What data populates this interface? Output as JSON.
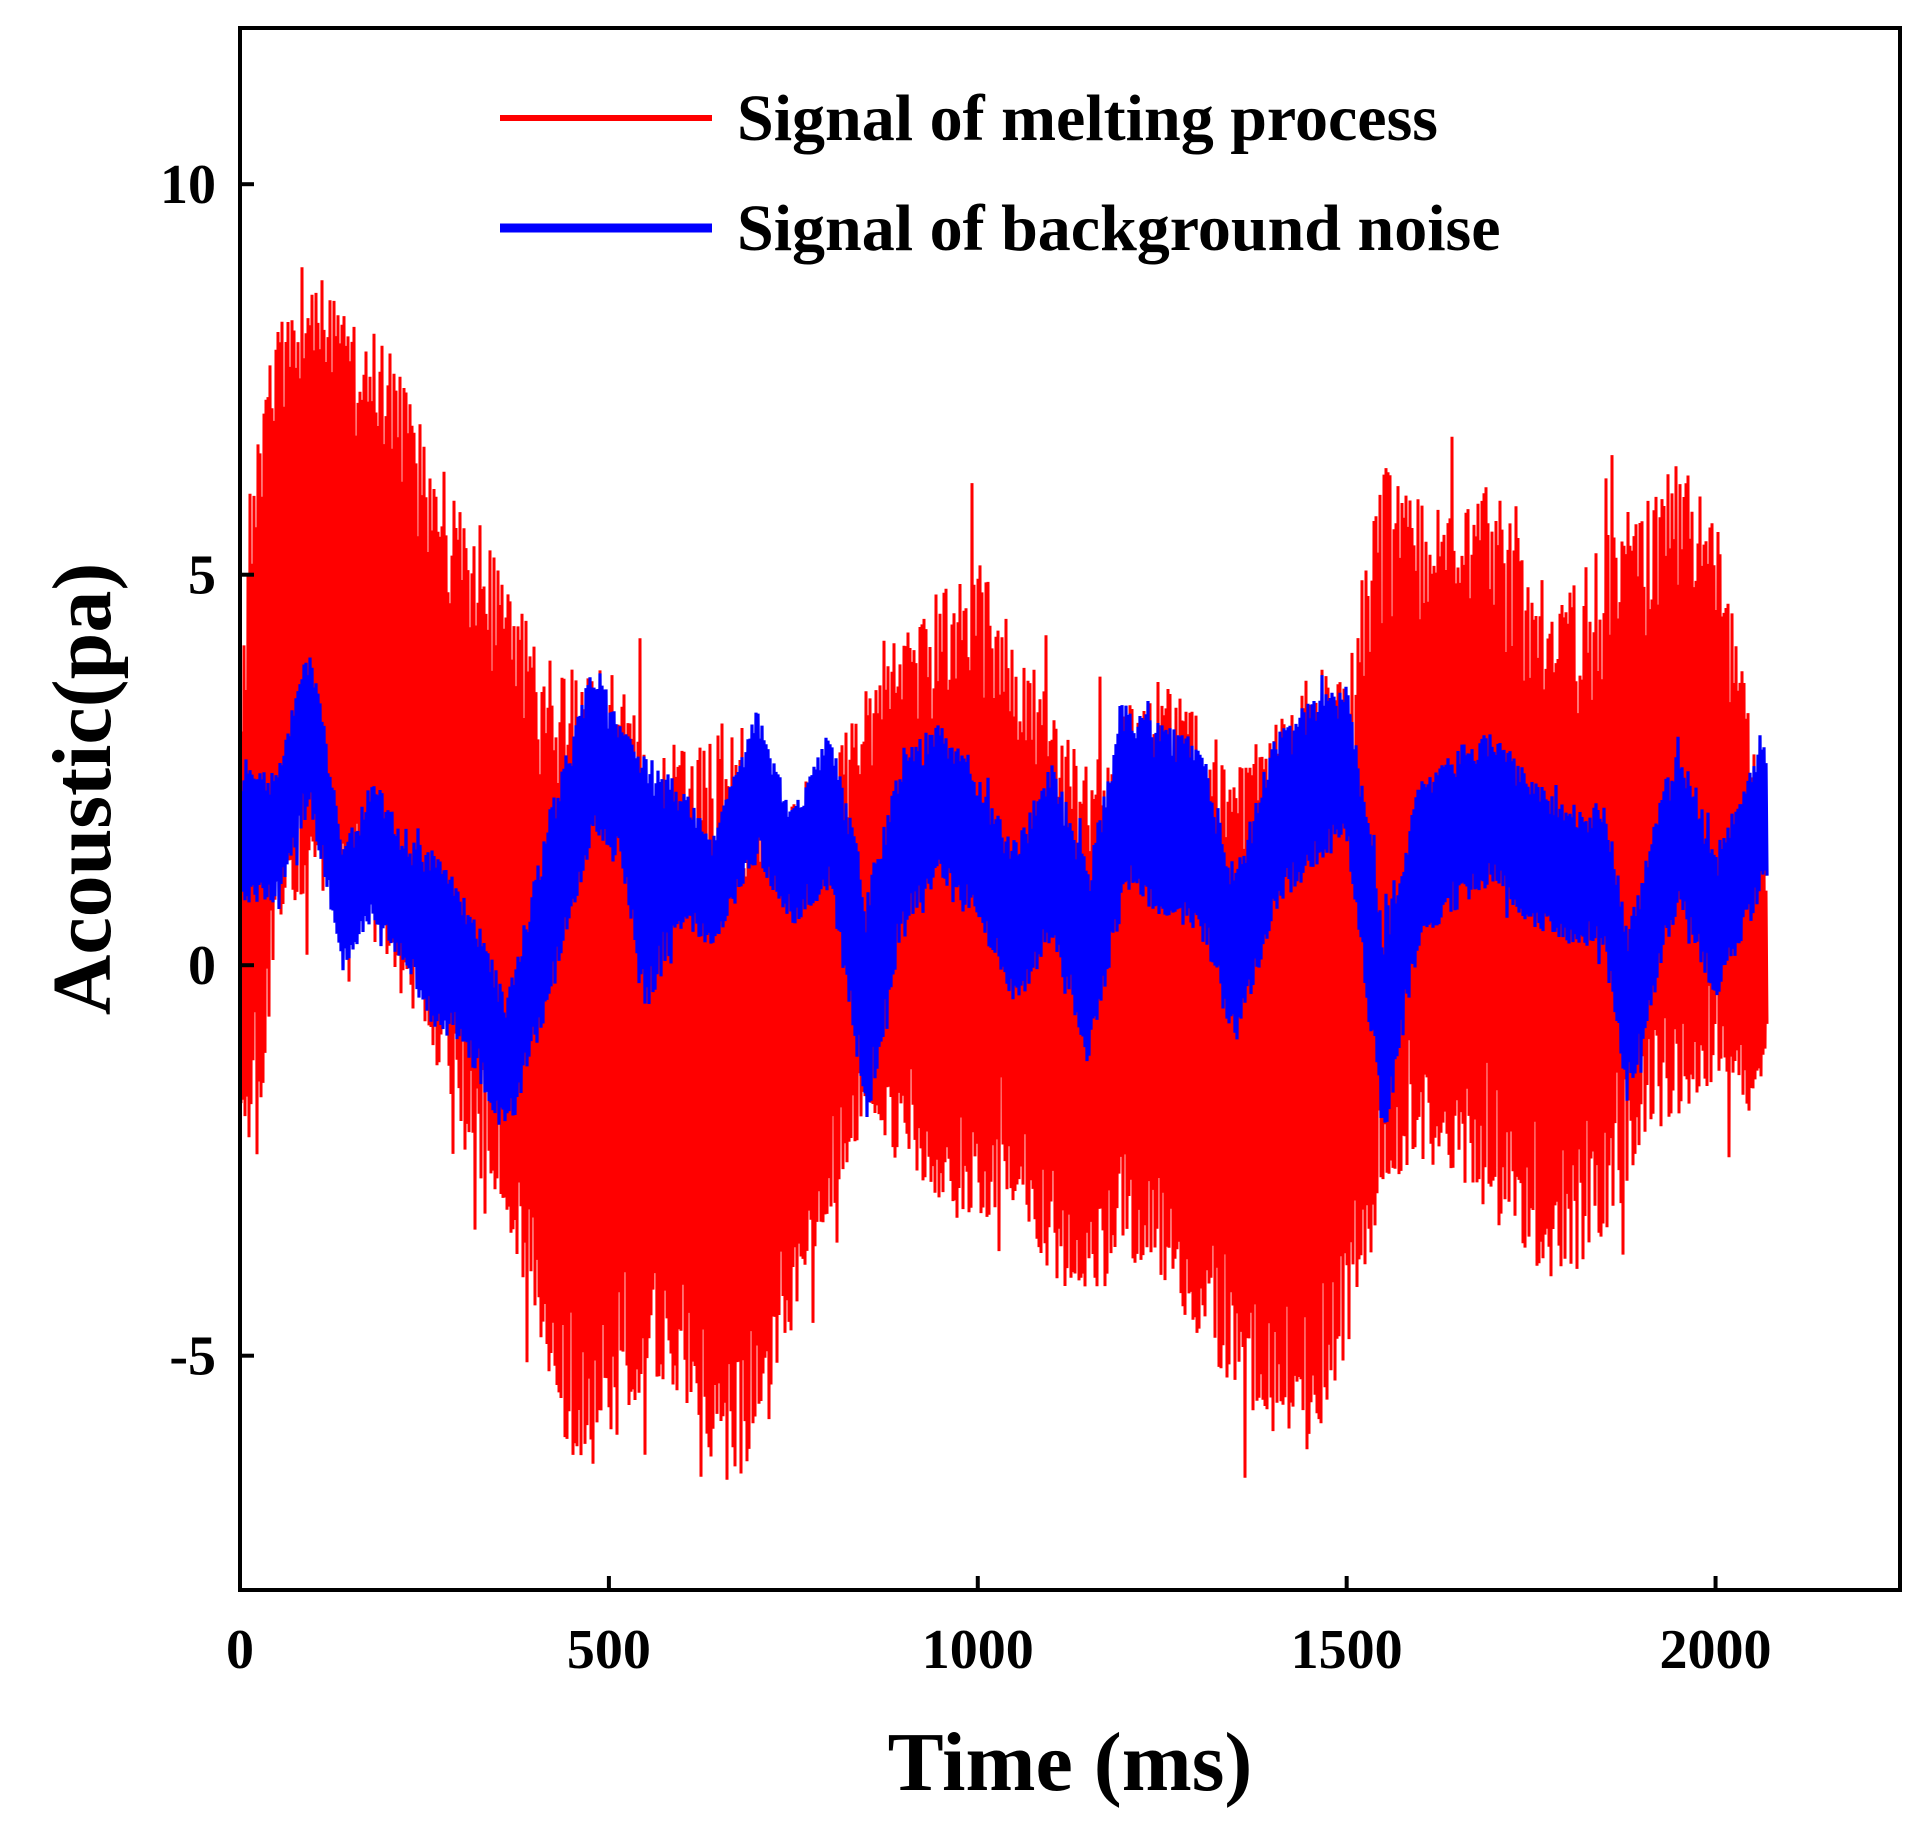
{
  "chart_data": {
    "type": "line",
    "title": "",
    "xlabel": "Time (ms)",
    "ylabel": "Acoustic(pa)",
    "xlim": [
      0,
      2250
    ],
    "ylim": [
      -8,
      12
    ],
    "xticks": [
      0,
      500,
      1000,
      1500,
      2000
    ],
    "xtick_labels": [
      "0",
      "500",
      "1000",
      "1500",
      "2000"
    ],
    "yticks": [
      -5,
      0,
      5,
      10
    ],
    "ytick_labels": [
      "-5",
      "0",
      "5",
      "10"
    ],
    "grid": false,
    "legend_position": "top-right",
    "series": [
      {
        "name": "Signal of melting process",
        "color": "#ff0000",
        "x_range": [
          0,
          2070
        ],
        "envelope": {
          "x": [
            0,
            25,
            50,
            100,
            150,
            200,
            250,
            300,
            350,
            400,
            450,
            500,
            550,
            600,
            650,
            700,
            750,
            800,
            850,
            900,
            950,
            1000,
            1050,
            1100,
            1150,
            1200,
            1250,
            1300,
            1350,
            1400,
            1450,
            1500,
            1550,
            1600,
            1650,
            1700,
            1750,
            1800,
            1850,
            1900,
            1950,
            2000,
            2050,
            2070
          ],
          "upper": [
            3.5,
            7.0,
            8.2,
            9.0,
            8.5,
            8.0,
            7.0,
            5.8,
            5.2,
            4.2,
            3.8,
            3.8,
            3.0,
            2.8,
            3.2,
            3.0,
            2.5,
            2.6,
            3.6,
            4.5,
            4.8,
            5.2,
            4.2,
            3.2,
            2.6,
            3.3,
            3.8,
            3.3,
            2.6,
            3.1,
            3.9,
            3.6,
            6.5,
            6.0,
            5.8,
            6.5,
            5.0,
            4.8,
            5.5,
            6.0,
            6.5,
            5.8,
            3.0,
            1.0
          ],
          "lower": [
            -2.0,
            -2.5,
            0.5,
            1.0,
            0.5,
            0.0,
            -1.0,
            -2.3,
            -3.0,
            -4.5,
            -6.5,
            -6.3,
            -5.3,
            -5.5,
            -6.8,
            -6.5,
            -4.5,
            -3.2,
            -2.0,
            -2.5,
            -3.0,
            -3.3,
            -3.0,
            -4.0,
            -4.5,
            -3.8,
            -4.0,
            -4.8,
            -5.5,
            -6.0,
            -6.3,
            -5.0,
            -3.0,
            -2.5,
            -2.7,
            -3.3,
            -3.8,
            -4.2,
            -3.5,
            -2.5,
            -2.0,
            -1.5,
            -2.2,
            -1.0
          ]
        }
      },
      {
        "name": "Signal of background noise",
        "color": "#0000ff",
        "x_range": [
          0,
          2070
        ],
        "envelope": {
          "x": [
            0,
            50,
            95,
            140,
            180,
            220,
            260,
            300,
            340,
            360,
            420,
            480,
            520,
            550,
            600,
            640,
            700,
            750,
            800,
            850,
            900,
            950,
            1000,
            1050,
            1100,
            1150,
            1200,
            1250,
            1300,
            1350,
            1400,
            1450,
            1500,
            1550,
            1600,
            1650,
            1700,
            1750,
            1800,
            1850,
            1880,
            1950,
            2000,
            2070
          ],
          "upper": [
            2.5,
            2.5,
            4.2,
            1.5,
            2.4,
            1.8,
            1.5,
            1.0,
            0.2,
            -0.5,
            2.0,
            3.9,
            3.0,
            2.7,
            2.3,
            1.6,
            3.3,
            2.0,
            3.0,
            1.0,
            2.8,
            3.1,
            2.4,
            1.6,
            2.6,
            1.3,
            3.4,
            3.1,
            2.9,
            1.2,
            2.9,
            3.4,
            3.6,
            0.6,
            2.4,
            2.8,
            3.0,
            2.4,
            2.0,
            2.1,
            0.5,
            3.0,
            1.5,
            3.0
          ],
          "lower": [
            0.8,
            0.8,
            2.0,
            -0.1,
            0.6,
            0.0,
            -0.8,
            -1.0,
            -1.8,
            -2.3,
            -0.5,
            1.7,
            1.1,
            -0.6,
            0.5,
            0.2,
            1.3,
            0.5,
            1.0,
            -2.0,
            0.5,
            1.1,
            0.6,
            -0.6,
            0.3,
            -1.3,
            0.9,
            0.6,
            0.4,
            -1.1,
            0.6,
            1.2,
            1.6,
            -2.3,
            0.3,
            0.7,
            1.0,
            0.5,
            0.3,
            0.2,
            -1.8,
            0.8,
            -0.5,
            1.0
          ]
        }
      }
    ]
  }
}
